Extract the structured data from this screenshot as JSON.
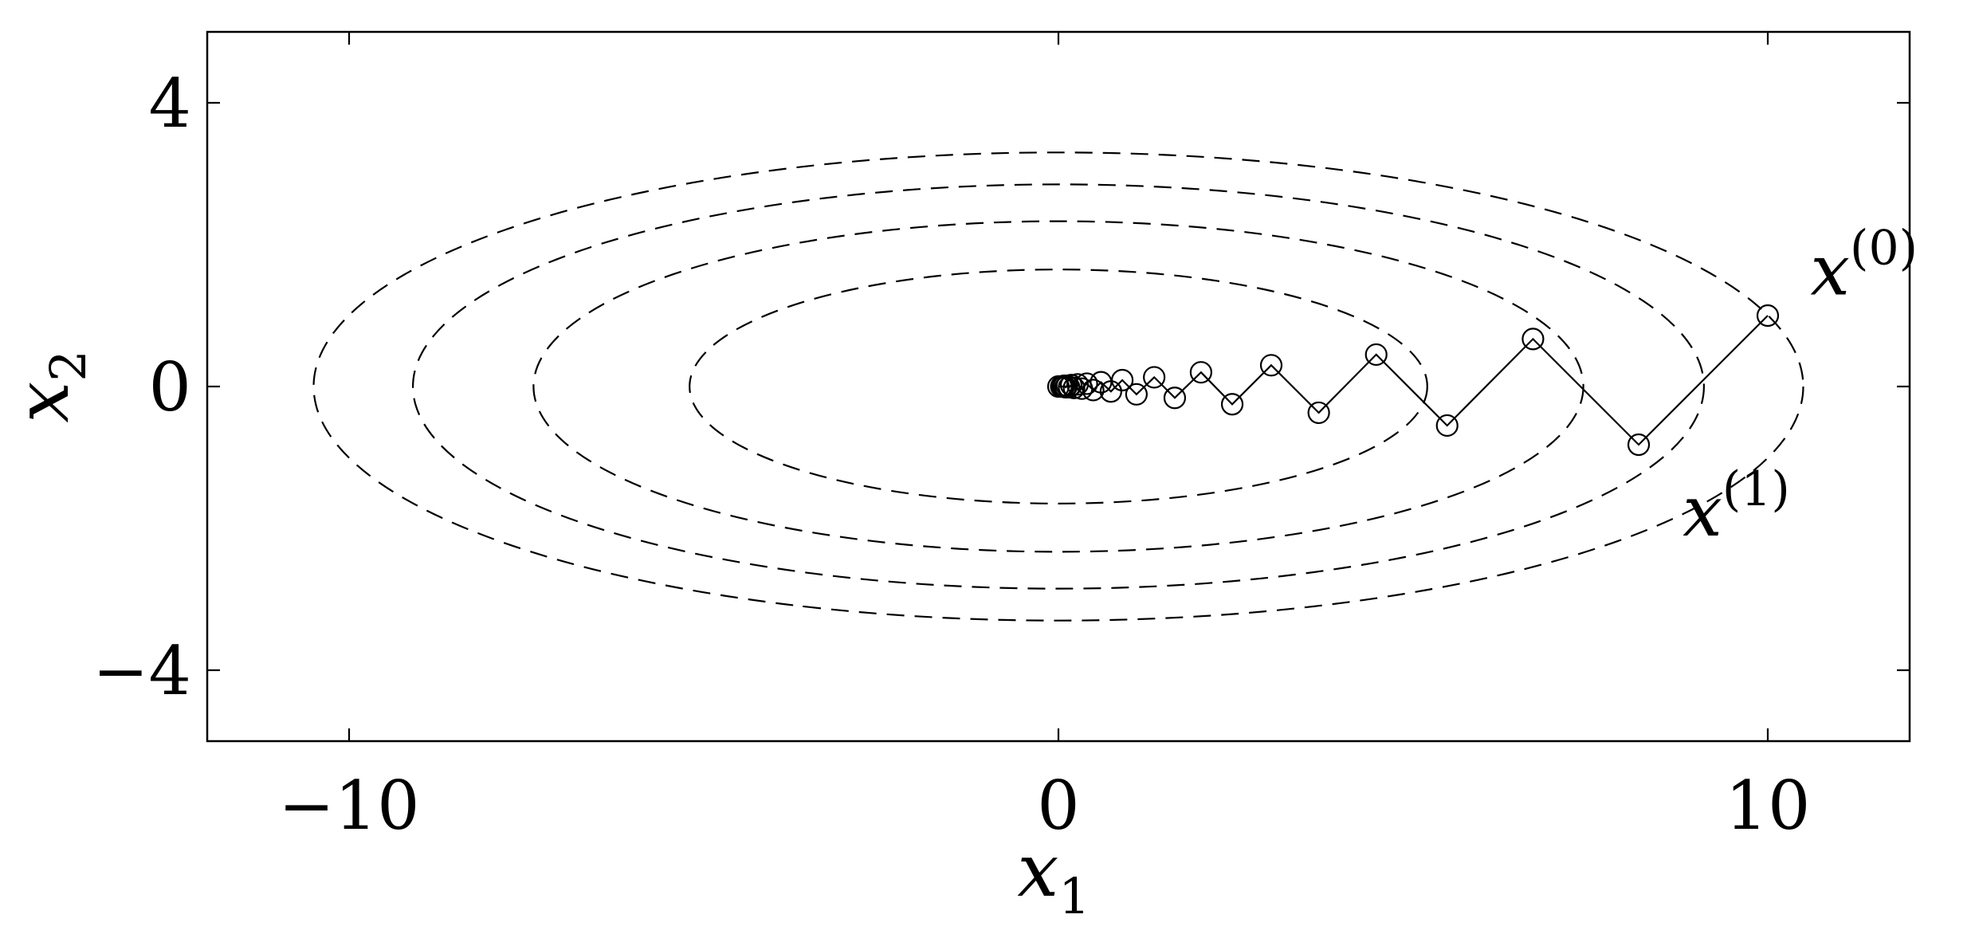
{
  "chart_data": {
    "type": "line",
    "title": "",
    "xlabel": {
      "base": "x",
      "sub": "1"
    },
    "ylabel": {
      "base": "x",
      "sub": "2"
    },
    "xlim": [
      -12,
      12
    ],
    "ylim": [
      -5,
      5
    ],
    "xticks": [
      -10,
      0,
      10
    ],
    "xtick_labels": [
      "−10",
      "0",
      "10"
    ],
    "yticks": [
      -4,
      0,
      4
    ],
    "ytick_labels": [
      "−4",
      "0",
      "4"
    ],
    "grid": false,
    "legend": "none",
    "contours": [
      {
        "style": "dashed",
        "cx": 0,
        "cy": 0,
        "rx": 10.5,
        "ry": 3.3
      },
      {
        "style": "dashed",
        "cx": 0,
        "cy": 0,
        "rx": 9.1,
        "ry": 2.85
      },
      {
        "style": "dashed",
        "cx": 0,
        "cy": 0,
        "rx": 7.4,
        "ry": 2.33
      },
      {
        "style": "dashed",
        "cx": 0,
        "cy": 0,
        "rx": 5.2,
        "ry": 1.65
      }
    ],
    "series": [
      {
        "marker": "open-circle",
        "line": "solid",
        "x": [
          10.0,
          8.18,
          6.69,
          5.48,
          4.48,
          3.67,
          3.0,
          2.45,
          2.01,
          1.64,
          1.35,
          1.1,
          0.9,
          0.74,
          0.6,
          0.49,
          0.4,
          0.33,
          0.27,
          0.22,
          0.18,
          0.15,
          0.12,
          0.1,
          0.08,
          0.07,
          0.05,
          0.04,
          0.0
        ],
        "y": [
          1.0,
          -0.82,
          0.67,
          -0.55,
          0.45,
          -0.37,
          0.3,
          -0.25,
          0.2,
          -0.16,
          0.13,
          -0.11,
          0.09,
          -0.07,
          0.06,
          -0.05,
          0.04,
          -0.03,
          0.03,
          -0.02,
          0.02,
          -0.01,
          0.01,
          -0.01,
          0.01,
          0.0,
          0.0,
          0.0,
          0.0
        ]
      }
    ],
    "annotations": [
      {
        "base": "x",
        "sup": "(0)",
        "x": 10.6,
        "y": 1.3
      },
      {
        "base": "x",
        "sup": "(1)",
        "x": 8.8,
        "y": -2.1
      }
    ]
  }
}
